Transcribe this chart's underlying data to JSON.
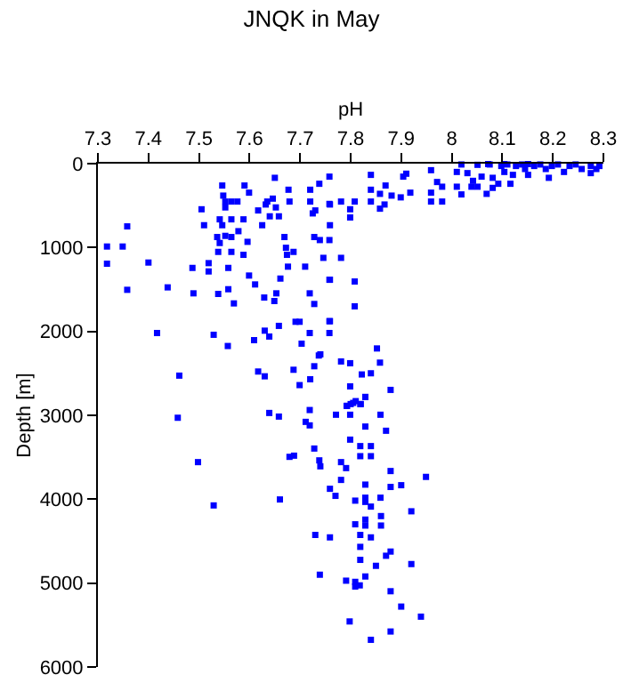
{
  "chart_data": {
    "type": "scatter",
    "title": "JNQK in May",
    "xlabel": "pH",
    "ylabel": "Depth [m]",
    "marker": "square",
    "xlim": [
      7.3,
      8.3
    ],
    "xticks": [
      7.3,
      7.4,
      7.5,
      7.6,
      7.7,
      7.8,
      7.9,
      8,
      8.1,
      8.2,
      8.3
    ],
    "ylim": [
      6000,
      0
    ],
    "yticks": [
      0,
      1000,
      2000,
      3000,
      4000,
      5000,
      6000
    ],
    "series": [
      {
        "color": "#0000ff",
        "x": [
          7.318,
          7.349,
          7.318,
          7.358,
          7.358,
          7.4,
          7.438,
          7.417,
          7.461,
          7.487,
          7.489,
          7.519,
          7.519,
          7.529,
          7.538,
          7.557,
          7.558,
          7.558,
          7.569,
          7.546,
          7.548,
          7.552,
          7.564,
          7.576,
          7.552,
          7.541,
          7.546,
          7.564,
          7.588,
          7.536,
          7.541,
          7.552,
          7.564,
          7.538,
          7.564,
          7.588,
          7.578,
          7.59,
          7.599,
          7.596,
          7.599,
          7.611,
          7.609,
          7.617,
          7.63,
          7.63,
          7.629,
          7.632,
          7.617,
          7.625,
          7.635,
          7.64,
          7.646,
          7.65,
          7.652,
          7.658,
          7.661,
          7.653,
          7.658,
          7.649,
          7.669,
          7.672,
          7.674,
          7.676,
          7.677,
          7.679,
          7.687,
          7.691,
          7.699,
          7.703,
          7.71,
          7.72,
          7.72,
          7.725,
          7.73,
          7.728,
          7.738,
          7.739,
          7.746,
          7.759,
          7.759,
          7.759,
          7.759,
          7.719,
          7.728,
          7.719,
          7.72,
          7.728,
          7.737,
          7.699,
          7.687,
          7.639,
          7.505,
          7.51,
          7.758,
          7.758,
          7.758,
          7.781,
          7.808,
          7.799,
          7.799,
          7.781,
          7.758,
          7.808,
          7.808,
          7.758,
          7.758,
          7.74,
          7.781,
          7.799,
          7.852,
          7.858,
          7.822,
          7.84,
          7.799,
          7.879,
          7.793,
          7.805,
          7.82,
          7.829,
          7.84,
          7.84,
          7.84,
          7.869,
          7.858,
          7.881,
          7.899,
          7.867,
          7.858,
          7.904,
          7.91,
          7.918,
          7.959,
          7.959,
          7.959,
          7.971,
          7.981,
          7.981,
          8.01,
          8.01,
          8.019,
          8.019,
          8.031,
          8.042,
          8.051,
          8.039,
          8.051,
          8.059,
          8.069,
          8.075,
          8.081,
          8.081,
          8.092,
          8.098,
          8.104,
          8.11,
          8.116,
          8.121,
          8.127,
          8.139,
          8.145,
          8.151,
          8.163,
          8.175,
          8.186,
          8.192,
          8.198,
          8.21,
          8.222,
          8.233,
          8.245,
          8.257,
          8.275,
          8.286,
          8.292,
          8.275,
          8.104,
          8.151,
          8.072,
          7.458,
          7.498,
          7.529,
          7.639,
          7.658,
          7.66,
          7.679,
          7.688,
          7.711,
          7.719,
          7.719,
          7.728,
          7.738,
          7.74,
          7.73,
          7.739,
          7.759,
          7.77,
          7.759,
          7.771,
          7.781,
          7.781,
          7.791,
          7.791,
          7.792,
          7.799,
          7.798,
          7.799,
          7.809,
          7.809,
          7.809,
          7.809,
          7.819,
          7.819,
          7.819,
          7.819,
          7.819,
          7.818,
          7.829,
          7.829,
          7.829,
          7.829,
          7.829,
          7.829,
          7.829,
          7.84,
          7.84,
          7.84,
          7.84,
          7.84,
          7.85,
          7.859,
          7.859,
          7.86,
          7.86,
          7.87,
          7.87,
          7.879,
          7.879,
          7.879,
          7.879,
          7.879,
          7.9,
          7.9,
          7.92,
          7.92,
          7.939,
          7.949,
          7.829,
          7.819,
          7.81,
          7.8
        ],
        "values": [
          988,
          988,
          1193,
          748,
          1504,
          1179,
          1475,
          2019,
          2527,
          1243,
          1546,
          1186,
          1285,
          2040,
          1553,
          2174,
          1497,
          1243,
          1666,
          261,
          381,
          452,
          452,
          452,
          522,
          664,
          734,
          664,
          664,
          875,
          946,
          861,
          875,
          1052,
          1052,
          1087,
          805,
          261,
          346,
          932,
          1334,
          1440,
          2104,
          2478,
          2535,
          1991,
          1596,
          487,
          558,
          734,
          452,
          628,
          417,
          169,
          522,
          628,
          1370,
          1546,
          1934,
          1638,
          875,
          1003,
          1087,
          1228,
          311,
          452,
          1052,
          1885,
          1885,
          2146,
          1228,
          311,
          452,
          593,
          558,
          875,
          240,
          911,
          1123,
          487,
          734,
          1384,
          1878,
          1546,
          1673,
          2019,
          2570,
          2415,
          2287,
          2640,
          2457,
          2061,
          544,
          734,
          155,
          480,
          911,
          452,
          452,
          544,
          642,
          1123,
          1384,
          1405,
          1701,
          1878,
          2019,
          2273,
          2358,
          2379,
          2203,
          2372,
          2513,
          2499,
          2655,
          2697,
          2888,
          2852,
          2866,
          2782,
          134,
          311,
          452,
          261,
          360,
          381,
          402,
          487,
          537,
          155,
          120,
          346,
          78,
          346,
          452,
          219,
          275,
          452,
          99,
          275,
          367,
          10,
          113,
          205,
          14,
          275,
          275,
          155,
          360,
          10,
          169,
          289,
          240,
          28,
          99,
          10,
          240,
          134,
          28,
          10,
          64,
          134,
          28,
          10,
          64,
          169,
          28,
          10,
          99,
          28,
          10,
          64,
          28,
          64,
          28,
          113,
          5,
          5,
          5,
          3029,
          3558,
          4074,
          2972,
          3015,
          4003,
          3495,
          3481,
          3078,
          2937,
          3120,
          3396,
          3537,
          3608,
          4426,
          4900,
          3876,
          3960,
          4455,
          2993,
          3558,
          3770,
          3629,
          4971,
          2887,
          2993,
          5457,
          3290,
          4017,
          4299,
          4985,
          5041,
          4426,
          4568,
          4723,
          3367,
          3487,
          5027,
          3134,
          3826,
          3982,
          4032,
          4243,
          4314,
          4921,
          3367,
          3487,
          4088,
          4455,
          5676,
          4794,
          2993,
          3982,
          4201,
          4314,
          3184,
          4674,
          3664,
          3854,
          4624,
          5097,
          5577,
          3833,
          5280,
          4144,
          4773,
          5400,
          3734,
          2781,
          2866,
          2831,
          2866
        ]
      }
    ]
  }
}
